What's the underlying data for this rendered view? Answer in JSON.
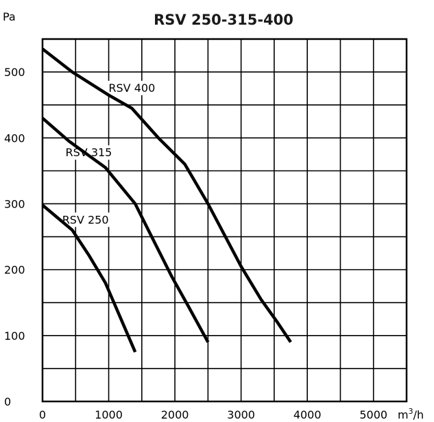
{
  "colors": {
    "background": "#ffffff",
    "grid": "#000000",
    "curve": "#000000",
    "text": "#000000"
  },
  "chart_data": {
    "type": "line",
    "title": "RSV 250-315-400",
    "ylabel": "Pa",
    "xunit_prefix": "m",
    "xunit_sup": "3",
    "xunit_suffix": "/h",
    "xlim": [
      0,
      5500
    ],
    "ylim": [
      0,
      550
    ],
    "xticks": [
      0,
      1000,
      2000,
      3000,
      4000,
      5000
    ],
    "xtick_labels": [
      "0",
      "1000",
      "2000",
      "3000",
      "4000",
      "5000"
    ],
    "yticks": [
      0,
      100,
      200,
      300,
      400,
      500
    ],
    "ytick_labels": [
      "0",
      "100",
      "200",
      "300",
      "400",
      "500"
    ],
    "grid_x_step": 500,
    "grid_y_step": 50,
    "grid": true,
    "legend": "inline labels on curves",
    "series": [
      {
        "name": "RSV 400",
        "x": [
          0,
          450,
          1000,
          1350,
          1750,
          2150,
          2500,
          3000,
          3300,
          3550,
          3750
        ],
        "y": [
          535,
          500,
          465,
          445,
          400,
          360,
          300,
          205,
          155,
          120,
          90
        ]
      },
      {
        "name": "RSV 315",
        "x": [
          0,
          400,
          950,
          1400,
          1700,
          1950,
          2200,
          2500
        ],
        "y": [
          430,
          395,
          355,
          300,
          240,
          190,
          145,
          90
        ]
      },
      {
        "name": "RSV 250",
        "x": [
          0,
          450,
          700,
          950,
          1100,
          1250,
          1400
        ],
        "y": [
          298,
          260,
          222,
          180,
          145,
          110,
          75
        ]
      }
    ]
  }
}
